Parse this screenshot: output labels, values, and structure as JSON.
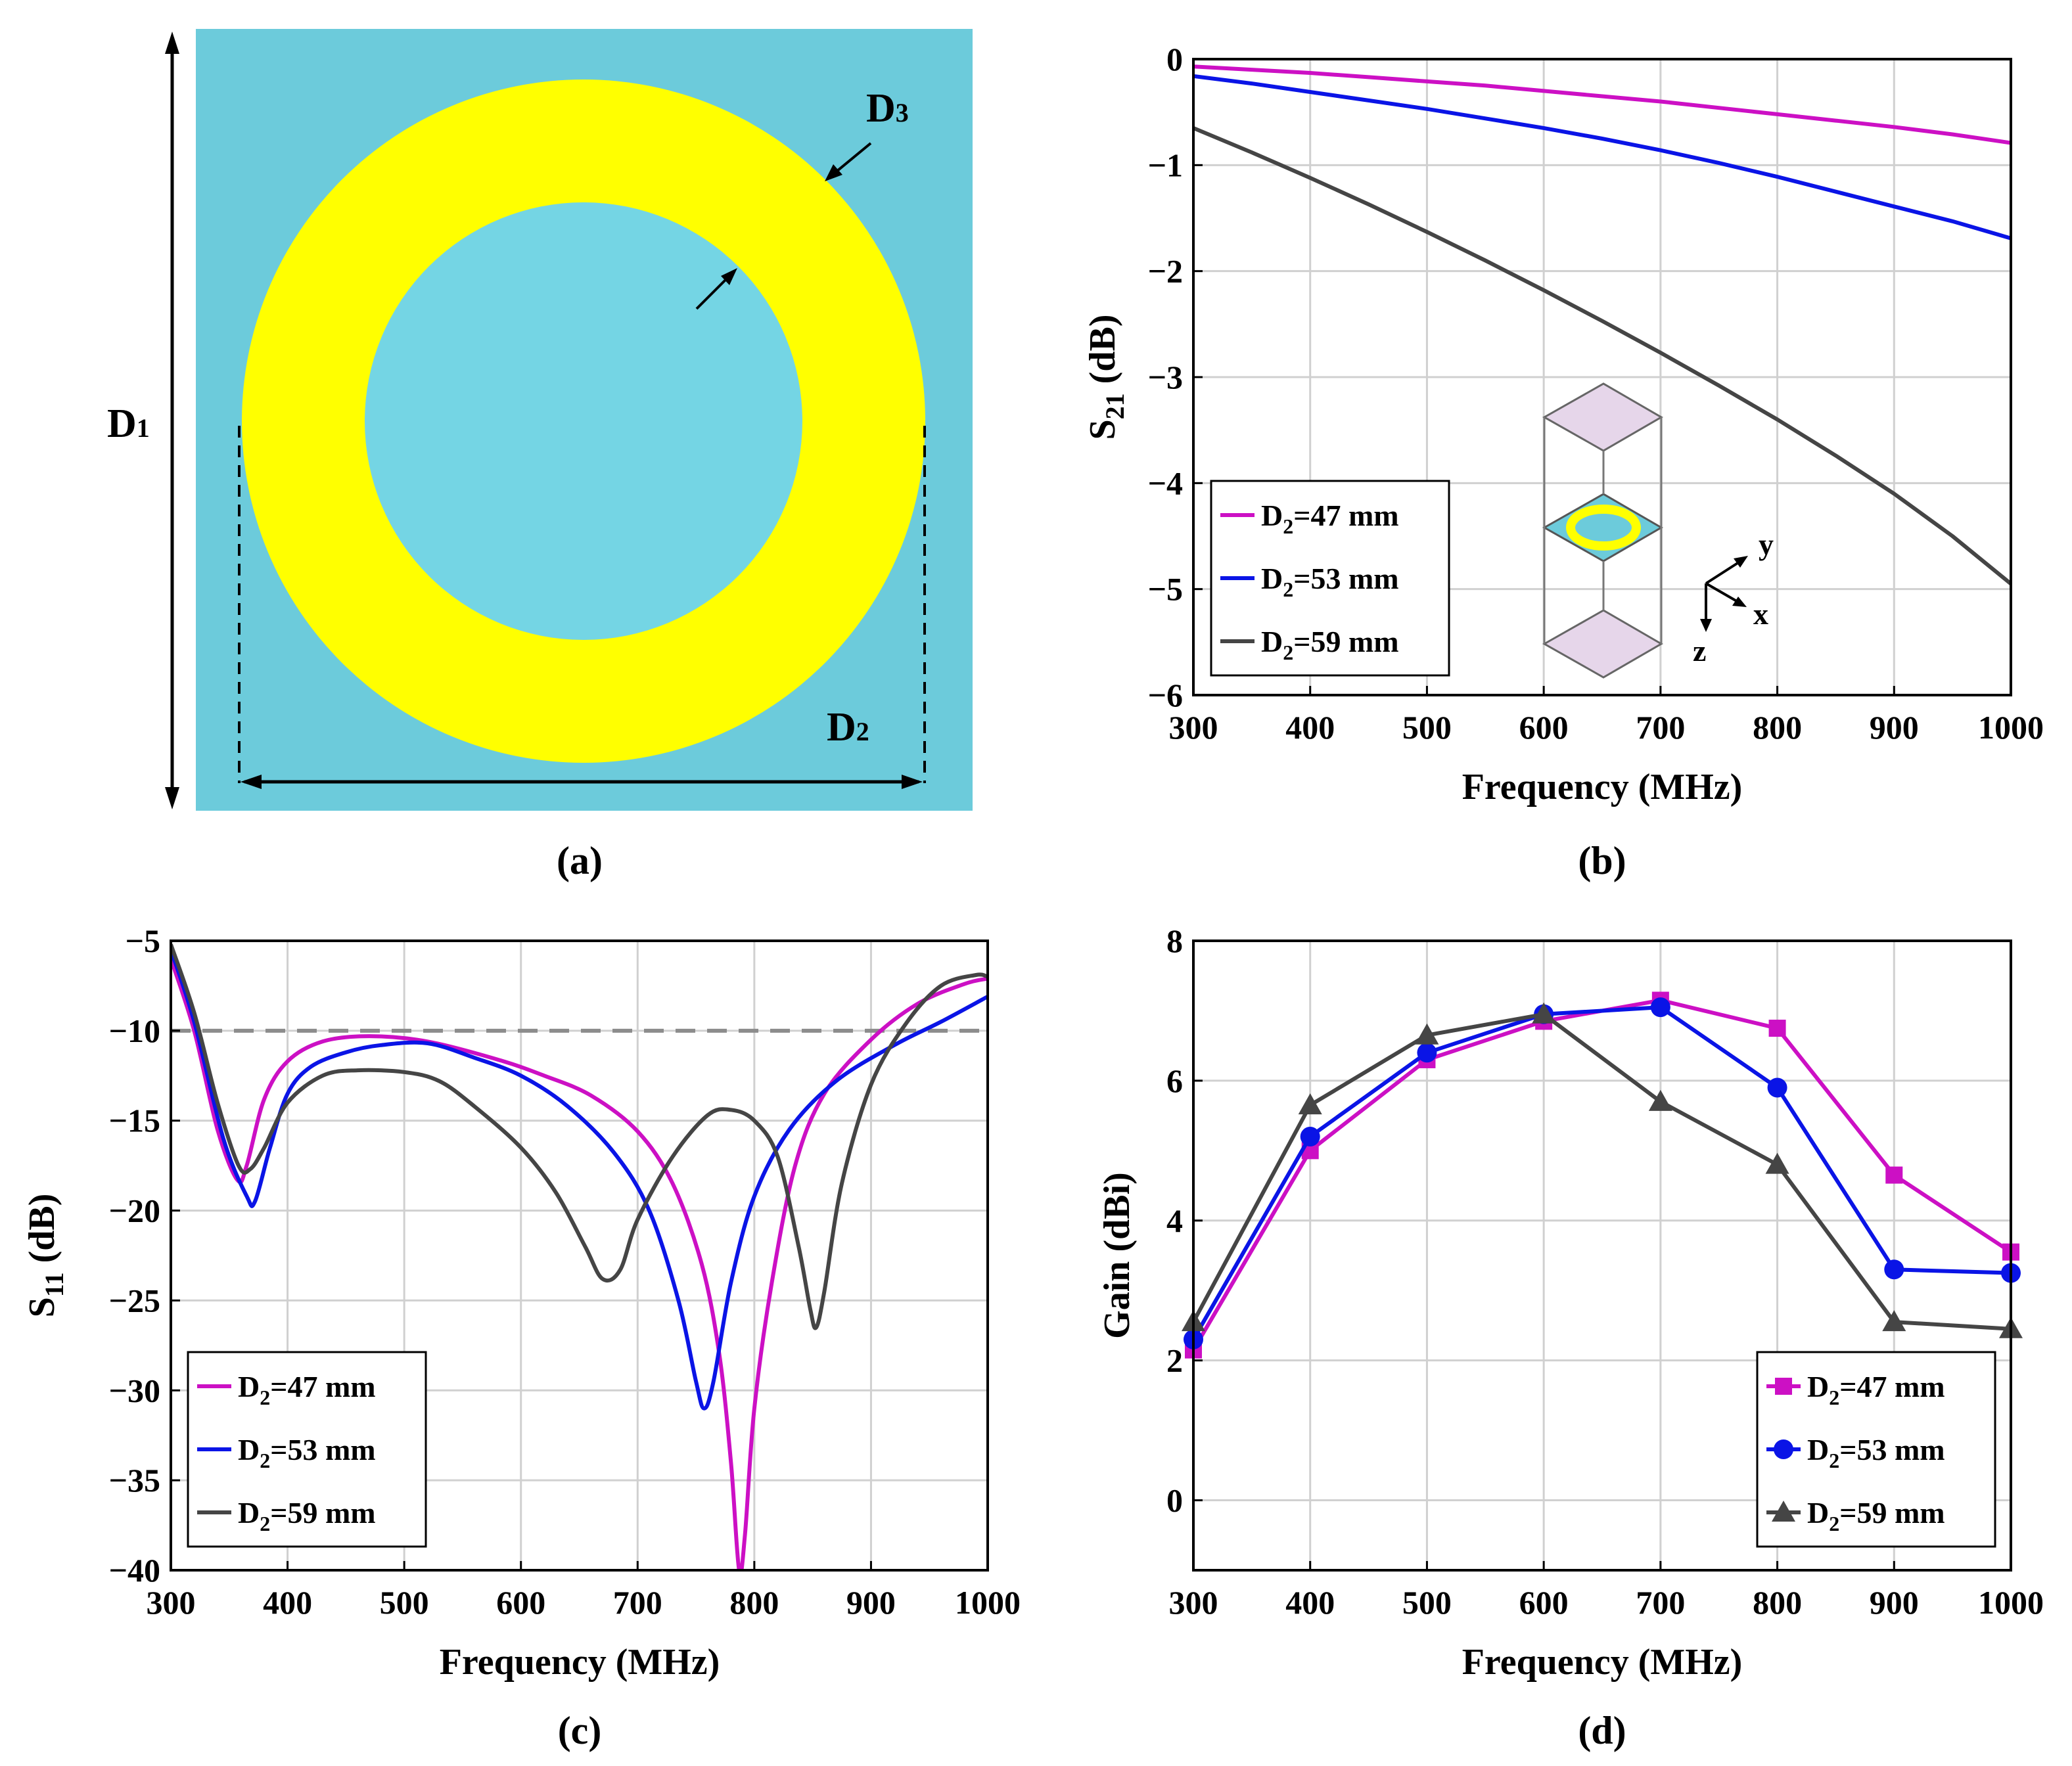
{
  "colors": {
    "d47": "#cc10c4",
    "d53": "#0a14e6",
    "d59": "#454545",
    "substrate": "#6ccbdb",
    "ring": "#ffff00",
    "grid": "#d0d0d0",
    "ref_line": "#8c8c8c"
  },
  "panel_a": {
    "label": "(a)",
    "d1_label": "D",
    "d1_sub": "1",
    "d2_label": "D",
    "d2_sub": "2",
    "d3_label": "D",
    "d3_sub": "3"
  },
  "chart_data": [
    {
      "panel": "(b)",
      "type": "line",
      "title": "",
      "xlabel": "Frequency (MHz)",
      "ylabel_main": "S",
      "ylabel_sub": "21",
      "ylabel_unit": " (dB)",
      "xlim": [
        300,
        1000
      ],
      "ylim": [
        -6,
        0
      ],
      "xticks": [
        300,
        400,
        500,
        600,
        700,
        800,
        900,
        1000
      ],
      "yticks": [
        0,
        -1,
        -2,
        -3,
        -4,
        -5,
        -6
      ],
      "ytick_labels": [
        "0",
        "−1",
        "−2",
        "−3",
        "−4",
        "−5",
        "−6"
      ],
      "grid": true,
      "legend_position": "bottom-left",
      "x": [
        300,
        350,
        400,
        450,
        500,
        550,
        600,
        650,
        700,
        750,
        800,
        850,
        900,
        950,
        1000
      ],
      "series": [
        {
          "name": "=47 mm",
          "name_prefix": "D",
          "name_sub": "2",
          "color_key": "d47",
          "values": [
            -0.07,
            -0.1,
            -0.13,
            -0.17,
            -0.21,
            -0.25,
            -0.3,
            -0.35,
            -0.4,
            -0.46,
            -0.52,
            -0.58,
            -0.64,
            -0.71,
            -0.79
          ]
        },
        {
          "name": "=53 mm",
          "name_prefix": "D",
          "name_sub": "2",
          "color_key": "d53",
          "values": [
            -0.16,
            -0.23,
            -0.31,
            -0.39,
            -0.47,
            -0.56,
            -0.65,
            -0.75,
            -0.86,
            -0.98,
            -1.11,
            -1.25,
            -1.39,
            -1.53,
            -1.69
          ]
        },
        {
          "name": "=59 mm",
          "name_prefix": "D",
          "name_sub": "2",
          "color_key": "d59",
          "values": [
            -0.65,
            -0.88,
            -1.12,
            -1.37,
            -1.63,
            -1.9,
            -2.18,
            -2.47,
            -2.77,
            -3.08,
            -3.4,
            -3.74,
            -4.1,
            -4.5,
            -4.95
          ]
        }
      ],
      "inset_axes": {
        "y": "y",
        "x": "x",
        "z": "z"
      }
    },
    {
      "panel": "(c)",
      "type": "line",
      "title": "",
      "xlabel": "Frequency (MHz)",
      "ylabel_main": "S",
      "ylabel_sub": "11",
      "ylabel_unit": " (dB)",
      "xlim": [
        300,
        1000
      ],
      "ylim": [
        -40,
        -5
      ],
      "xticks": [
        300,
        400,
        500,
        600,
        700,
        800,
        900,
        1000
      ],
      "yticks": [
        -5,
        -10,
        -15,
        -20,
        -25,
        -30,
        -35,
        -40
      ],
      "ytick_labels": [
        "−5",
        "−10",
        "−15",
        "−20",
        "−25",
        "−30",
        "−35",
        "−40"
      ],
      "grid": true,
      "reference_line": -10,
      "legend_position": "bottom-left",
      "series": [
        {
          "name": "=47 mm",
          "name_prefix": "D",
          "name_sub": "2",
          "color_key": "d47",
          "points": [
            [
              300,
              -6
            ],
            [
              320,
              -10
            ],
            [
              340,
              -15.5
            ],
            [
              357,
              -18.3
            ],
            [
              365,
              -17.5
            ],
            [
              380,
              -13.8
            ],
            [
              400,
              -11.7
            ],
            [
              430,
              -10.6
            ],
            [
              470,
              -10.3
            ],
            [
              520,
              -10.6
            ],
            [
              580,
              -11.6
            ],
            [
              620,
              -12.5
            ],
            [
              660,
              -13.6
            ],
            [
              700,
              -15.6
            ],
            [
              730,
              -18.5
            ],
            [
              755,
              -23
            ],
            [
              770,
              -28
            ],
            [
              780,
              -34
            ],
            [
              787,
              -40
            ],
            [
              792,
              -38
            ],
            [
              800,
              -31
            ],
            [
              815,
              -24
            ],
            [
              835,
              -17.5
            ],
            [
              860,
              -13.5
            ],
            [
              900,
              -10.5
            ],
            [
              940,
              -8.5
            ],
            [
              980,
              -7.4
            ],
            [
              1000,
              -7.1
            ]
          ]
        },
        {
          "name": "=53 mm",
          "name_prefix": "D",
          "name_sub": "2",
          "color_key": "d53",
          "points": [
            [
              300,
              -5.5
            ],
            [
              320,
              -9.5
            ],
            [
              345,
              -16
            ],
            [
              365,
              -19.2
            ],
            [
              372,
              -19.5
            ],
            [
              385,
              -16.5
            ],
            [
              400,
              -13.5
            ],
            [
              420,
              -12
            ],
            [
              450,
              -11.2
            ],
            [
              480,
              -10.8
            ],
            [
              520,
              -10.7
            ],
            [
              560,
              -11.5
            ],
            [
              600,
              -12.5
            ],
            [
              640,
              -14.2
            ],
            [
              680,
              -16.8
            ],
            [
              710,
              -20
            ],
            [
              735,
              -25
            ],
            [
              750,
              -29.5
            ],
            [
              757,
              -31
            ],
            [
              765,
              -29.5
            ],
            [
              780,
              -24
            ],
            [
              800,
              -19.2
            ],
            [
              830,
              -15.5
            ],
            [
              870,
              -12.8
            ],
            [
              920,
              -10.8
            ],
            [
              960,
              -9.5
            ],
            [
              1000,
              -8.1
            ]
          ]
        },
        {
          "name": "=59 mm",
          "name_prefix": "D",
          "name_sub": "2",
          "color_key": "d59",
          "points": [
            [
              300,
              -5.2
            ],
            [
              320,
              -9
            ],
            [
              340,
              -14
            ],
            [
              358,
              -17.5
            ],
            [
              368,
              -17.7
            ],
            [
              380,
              -16.5
            ],
            [
              400,
              -14
            ],
            [
              430,
              -12.5
            ],
            [
              460,
              -12.2
            ],
            [
              500,
              -12.3
            ],
            [
              530,
              -12.8
            ],
            [
              560,
              -14.2
            ],
            [
              600,
              -16.5
            ],
            [
              630,
              -19
            ],
            [
              655,
              -22
            ],
            [
              670,
              -23.8
            ],
            [
              685,
              -23.3
            ],
            [
              700,
              -20.5
            ],
            [
              730,
              -17
            ],
            [
              760,
              -14.7
            ],
            [
              780,
              -14.4
            ],
            [
              800,
              -15
            ],
            [
              820,
              -17
            ],
            [
              838,
              -22
            ],
            [
              848,
              -25.5
            ],
            [
              853,
              -26.5
            ],
            [
              860,
              -24.5
            ],
            [
              875,
              -18.5
            ],
            [
              900,
              -13
            ],
            [
              930,
              -9.6
            ],
            [
              960,
              -7.5
            ],
            [
              990,
              -6.9
            ],
            [
              1000,
              -7
            ]
          ]
        }
      ]
    },
    {
      "panel": "(d)",
      "type": "line",
      "title": "",
      "xlabel": "Frequency (MHz)",
      "ylabel": "Gain (dBi)",
      "xlim": [
        300,
        1000
      ],
      "ylim": [
        -1,
        8
      ],
      "xticks": [
        300,
        400,
        500,
        600,
        700,
        800,
        900,
        1000
      ],
      "yticks": [
        0,
        2,
        4,
        6,
        8
      ],
      "ytick_labels": [
        "0",
        "2",
        "4",
        "6",
        "8"
      ],
      "grid": true,
      "legend_position": "bottom-right",
      "x": [
        300,
        400,
        500,
        600,
        700,
        800,
        900,
        1000
      ],
      "series": [
        {
          "name": "=47 mm",
          "name_prefix": "D",
          "name_sub": "2",
          "color_key": "d47",
          "marker": "square",
          "values": [
            2.15,
            5.0,
            6.3,
            6.85,
            7.15,
            6.75,
            4.65,
            3.55
          ]
        },
        {
          "name": "=53 mm",
          "name_prefix": "D",
          "name_sub": "2",
          "color_key": "d53",
          "marker": "circle",
          "values": [
            2.3,
            5.2,
            6.4,
            6.95,
            7.05,
            5.9,
            3.3,
            3.25
          ]
        },
        {
          "name": "=59 mm",
          "name_prefix": "D",
          "name_sub": "2",
          "color_key": "d59",
          "marker": "triangle",
          "values": [
            2.55,
            5.65,
            6.65,
            6.95,
            5.7,
            4.8,
            2.55,
            2.45
          ]
        }
      ]
    }
  ]
}
